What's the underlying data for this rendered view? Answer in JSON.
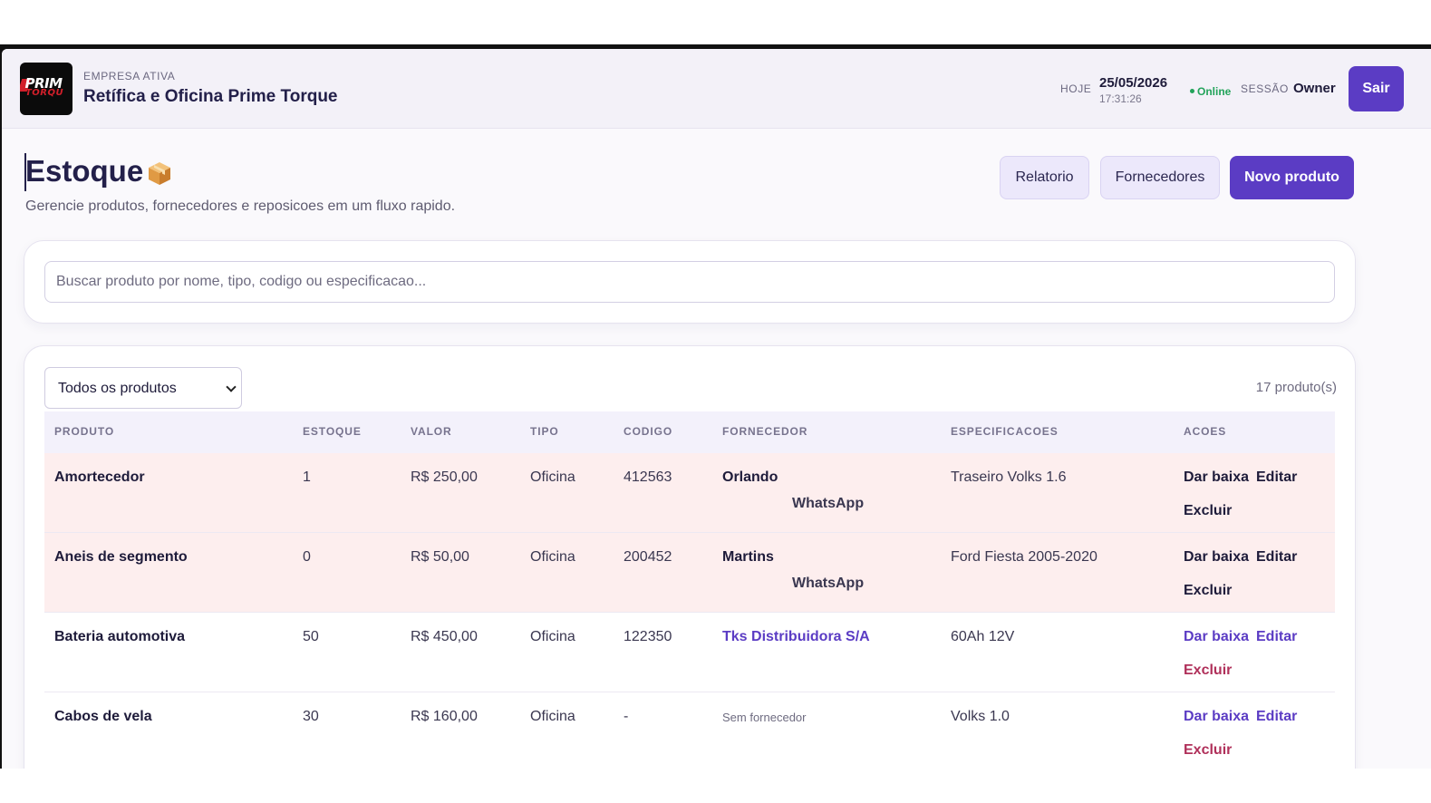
{
  "header": {
    "logo_text": "PRIME TORQUE",
    "company_label": "EMPRESA ATIVA",
    "company_name": "Retífica e Oficina Prime Torque",
    "today_label": "HOJE",
    "today_date": "25/05/2026",
    "today_time": "17:31:26",
    "status": "Online",
    "session_label": "SESSÃO",
    "session_user": "Owner",
    "logout_label": "Sair"
  },
  "page": {
    "title": "Estoque",
    "title_icon": "package-box-icon",
    "subtitle": "Gerencie produtos, fornecedores e reposicoes em um fluxo rapido.",
    "buttons": {
      "report": "Relatorio",
      "suppliers": "Fornecedores",
      "new_product": "Novo produto"
    }
  },
  "search": {
    "placeholder": "Buscar produto por nome, tipo, codigo ou especificacao...",
    "value": ""
  },
  "filter": {
    "selected": "Todos os produtos",
    "count_label": "17 produto(s)"
  },
  "table": {
    "headers": [
      "PRODUTO",
      "ESTOQUE",
      "VALOR",
      "TIPO",
      "CODIGO",
      "FORNECEDOR",
      "ESPECIFICACOES",
      "ACOES"
    ],
    "rows": [
      {
        "produto": "Amortecedor",
        "estoque": "1",
        "valor": "R$ 250,00",
        "tipo": "Oficina",
        "codigo": "412563",
        "fornecedor": "Orlando",
        "whatsapp": "WhatsApp",
        "especificacoes": "Traseiro Volks 1.6",
        "actions": {
          "baixa": "Dar baixa",
          "editar": "Editar",
          "excluir": "Excluir"
        }
      },
      {
        "produto": "Aneis de segmento",
        "estoque": "0",
        "valor": "R$ 50,00",
        "tipo": "Oficina",
        "codigo": "200452",
        "fornecedor": "Martins",
        "whatsapp": "WhatsApp",
        "especificacoes": "Ford Fiesta 2005-2020",
        "actions": {
          "baixa": "Dar baixa",
          "editar": "Editar",
          "excluir": "Excluir"
        }
      },
      {
        "produto": "Bateria automotiva",
        "estoque": "50",
        "valor": "R$ 450,00",
        "tipo": "Oficina",
        "codigo": "122350",
        "fornecedor": "Tks Distribuidora S/A",
        "especificacoes": "60Ah 12V",
        "actions": {
          "baixa": "Dar baixa",
          "editar": "Editar",
          "excluir": "Excluir"
        }
      },
      {
        "produto": "Cabos de vela",
        "estoque": "30",
        "valor": "R$ 160,00",
        "tipo": "Oficina",
        "codigo": "-",
        "fornecedor": "Sem fornecedor",
        "especificacoes": "Volks 1.0",
        "actions": {
          "baixa": "Dar baixa",
          "editar": "Editar",
          "excluir": "Excluir"
        }
      }
    ]
  },
  "colors": {
    "accent": "#5b3cc4",
    "alert_row": "#fdeeee",
    "online": "#22a35a",
    "danger": "#b0305a"
  }
}
